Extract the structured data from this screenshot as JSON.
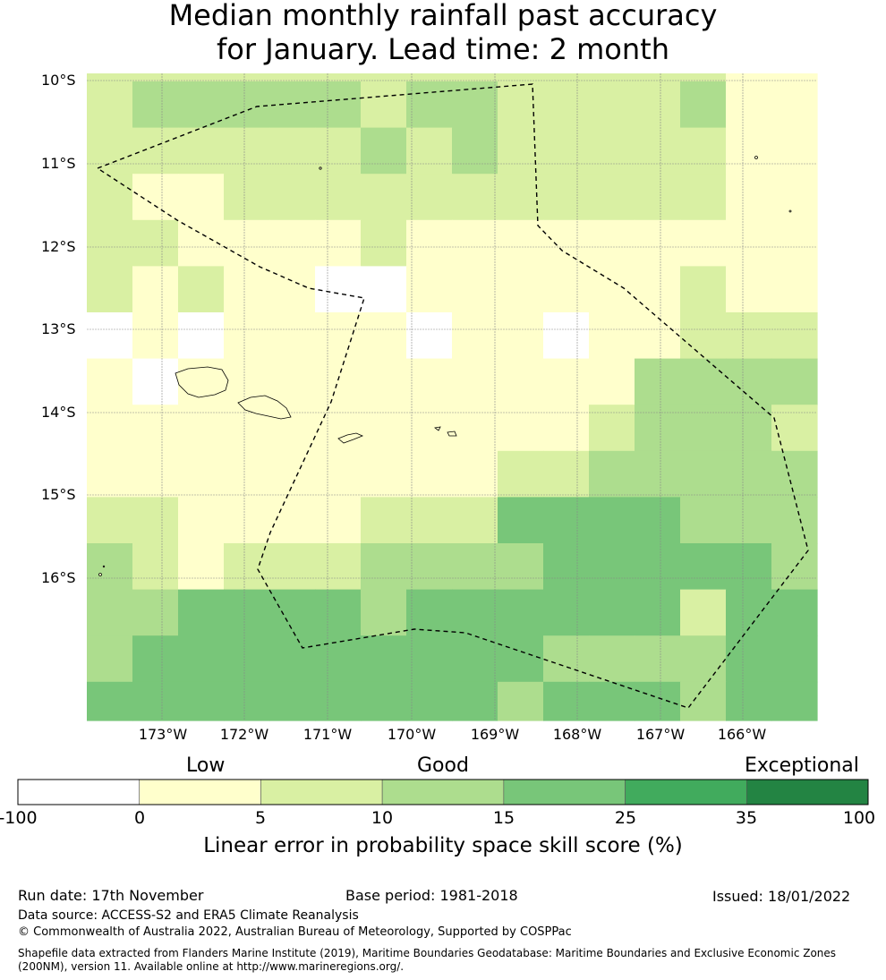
{
  "title": {
    "line1": "Median monthly rainfall past accuracy",
    "line2": "for January. Lead time: 2 month"
  },
  "map": {
    "lat_labels": [
      "10°S",
      "11°S",
      "12°S",
      "13°S",
      "14°S",
      "15°S",
      "16°S"
    ],
    "lon_labels": [
      "173°W",
      "172°W",
      "171°W",
      "170°W",
      "169°W",
      "168°W",
      "167°W",
      "166°W"
    ],
    "skill_bins": [
      {
        "range": "-100 to 0",
        "color": "#ffffff"
      },
      {
        "range": "0 to 5",
        "color": "#ffffcc"
      },
      {
        "range": "5 to 10",
        "color": "#d9f0a3"
      },
      {
        "range": "10 to 15",
        "color": "#addd8e"
      },
      {
        "range": "15 to 25",
        "color": "#78c679"
      },
      {
        "range": "25 to 35",
        "color": "#41ab5d"
      },
      {
        "range": "35 to 100",
        "color": "#238443"
      }
    ],
    "grid_bins": [
      [
        2,
        2,
        2,
        2,
        2,
        2,
        2,
        2,
        2,
        2,
        2,
        2,
        2,
        2,
        1,
        1
      ],
      [
        2,
        3,
        3,
        3,
        3,
        3,
        2,
        3,
        3,
        2,
        2,
        2,
        2,
        3,
        1,
        1
      ],
      [
        2,
        2,
        2,
        2,
        2,
        2,
        3,
        2,
        3,
        2,
        2,
        2,
        2,
        2,
        1,
        1
      ],
      [
        2,
        1,
        1,
        2,
        2,
        2,
        2,
        2,
        2,
        2,
        2,
        2,
        2,
        2,
        1,
        1
      ],
      [
        2,
        2,
        1,
        1,
        1,
        1,
        2,
        1,
        1,
        1,
        1,
        1,
        1,
        1,
        1,
        1
      ],
      [
        2,
        1,
        2,
        1,
        1,
        0,
        0,
        1,
        1,
        1,
        1,
        1,
        1,
        2,
        1,
        1
      ],
      [
        0,
        1,
        0,
        1,
        1,
        1,
        1,
        0,
        1,
        1,
        0,
        1,
        1,
        2,
        2,
        2
      ],
      [
        1,
        0,
        1,
        1,
        1,
        1,
        1,
        1,
        1,
        1,
        1,
        1,
        3,
        3,
        3,
        3
      ],
      [
        1,
        1,
        1,
        1,
        1,
        1,
        1,
        1,
        1,
        1,
        1,
        2,
        3,
        3,
        3,
        2
      ],
      [
        1,
        1,
        1,
        1,
        1,
        1,
        1,
        1,
        1,
        2,
        2,
        3,
        3,
        3,
        3,
        3
      ],
      [
        2,
        2,
        1,
        1,
        1,
        1,
        2,
        2,
        2,
        4,
        4,
        4,
        4,
        3,
        3,
        3
      ],
      [
        3,
        2,
        1,
        2,
        2,
        2,
        3,
        3,
        3,
        3,
        4,
        4,
        4,
        4,
        4,
        3
      ],
      [
        3,
        3,
        4,
        4,
        4,
        4,
        3,
        4,
        4,
        4,
        4,
        4,
        4,
        2,
        4,
        4
      ],
      [
        3,
        4,
        4,
        4,
        4,
        4,
        4,
        4,
        4,
        4,
        3,
        3,
        3,
        3,
        4,
        4
      ],
      [
        4,
        4,
        4,
        4,
        4,
        4,
        4,
        4,
        4,
        3,
        4,
        4,
        4,
        3,
        4,
        4
      ]
    ]
  },
  "colorbar": {
    "categories": [
      "Low",
      "Good",
      "Exceptional"
    ],
    "ticks": [
      "-100",
      "0",
      "5",
      "10",
      "15",
      "25",
      "35",
      "100"
    ],
    "label": "Linear error in probability space skill score (%)"
  },
  "footer": {
    "run_date": "Run date: 17th November",
    "base_period": "Base period: 1981-2018",
    "issued": "Issued: 18/01/2022",
    "data_source": "Data source: ACCESS-S2 and ERA5 Climate Reanalysis",
    "copyright": "© Commonwealth of Australia 2022, Australian Bureau of Meteorology, Supported by COSPPac",
    "shapefile_line1": "Shapefile data extracted from Flanders Marine Institute (2019), Maritime Boundaries Geodatabase: Maritime Boundaries and Exclusive Economic Zones",
    "shapefile_line2": "(200NM), version 11. Available online at http://www.marineregions.org/."
  }
}
